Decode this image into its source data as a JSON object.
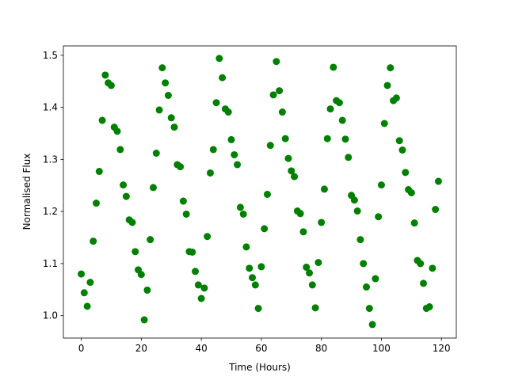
{
  "chart_data": {
    "type": "scatter",
    "x_label": "Time (Hours)",
    "y_label": "Normalised Flux",
    "color": "#008000",
    "x": [
      0,
      1,
      2,
      3,
      4,
      5,
      6,
      7,
      8,
      9,
      10,
      11,
      12,
      13,
      14,
      15,
      16,
      17,
      18,
      19,
      20,
      21,
      22,
      23,
      24,
      25,
      26,
      27,
      28,
      29,
      30,
      31,
      32,
      33,
      34,
      35,
      36,
      37,
      38,
      39,
      40,
      41,
      42,
      43,
      44,
      45,
      46,
      47,
      48,
      49,
      50,
      51,
      52,
      53,
      54,
      55,
      56,
      57,
      58,
      59,
      60,
      61,
      62,
      63,
      64,
      65,
      66,
      67,
      68,
      69,
      70,
      71,
      72,
      73,
      74,
      75,
      76,
      77,
      78,
      79,
      80,
      81,
      82,
      83,
      84,
      85,
      86,
      87,
      88,
      89,
      90,
      91,
      92,
      93,
      94,
      95,
      96,
      97,
      98,
      99,
      100,
      101,
      102,
      103,
      104,
      105,
      106,
      107,
      108,
      109,
      110,
      111,
      112,
      113,
      114,
      115,
      116,
      117,
      118,
      119
    ],
    "values": [
      1.08,
      1.044,
      1.018,
      1.064,
      1.143,
      1.216,
      1.277,
      1.375,
      1.462,
      1.447,
      1.442,
      1.362,
      1.354,
      1.319,
      1.251,
      1.229,
      1.184,
      1.179,
      1.123,
      1.088,
      1.079,
      0.992,
      1.049,
      1.146,
      1.246,
      1.312,
      1.395,
      1.476,
      1.447,
      1.423,
      1.38,
      1.362,
      1.29,
      1.286,
      1.22,
      1.195,
      1.123,
      1.122,
      1.085,
      1.059,
      1.033,
      1.053,
      1.152,
      1.274,
      1.319,
      1.409,
      1.494,
      1.457,
      1.397,
      1.391,
      1.338,
      1.309,
      1.29,
      1.208,
      1.195,
      1.132,
      1.091,
      1.073,
      1.059,
      1.014,
      1.094,
      1.167,
      1.233,
      1.327,
      1.424,
      1.488,
      1.432,
      1.391,
      1.34,
      1.302,
      1.278,
      1.267,
      1.201,
      1.196,
      1.161,
      1.093,
      1.082,
      1.059,
      1.015,
      1.102,
      1.179,
      1.243,
      1.34,
      1.397,
      1.477,
      1.413,
      1.409,
      1.375,
      1.339,
      1.304,
      1.231,
      1.222,
      1.201,
      1.146,
      1.1,
      1.055,
      1.014,
      0.983,
      1.071,
      1.19,
      1.251,
      1.369,
      1.442,
      1.476,
      1.413,
      1.418,
      1.336,
      1.318,
      1.275,
      1.242,
      1.236,
      1.178,
      1.106,
      1.1,
      1.062,
      1.014,
      1.017,
      1.091,
      1.204,
      1.258
    ],
    "xlim": [
      -5.95,
      124.95
    ],
    "ylim": [
      0.957,
      1.518
    ],
    "xticks": [
      0,
      20,
      40,
      60,
      80,
      100,
      120
    ],
    "yticks": [
      {
        "value": 1.0,
        "label": "1.0"
      },
      1.1,
      1.2,
      1.3,
      1.4,
      {
        "value": 1.5,
        "label": "1.5"
      }
    ]
  }
}
